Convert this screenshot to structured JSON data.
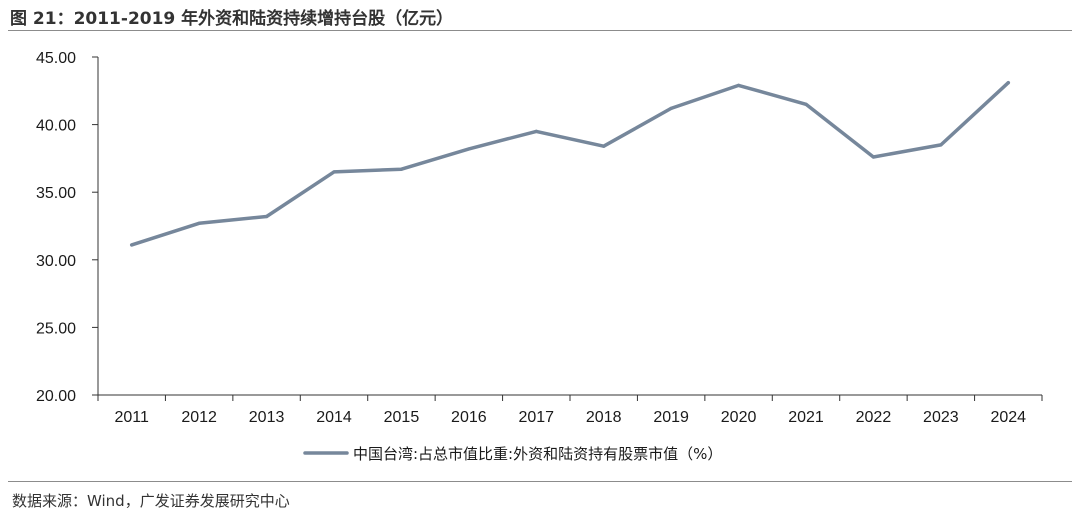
{
  "figure": {
    "title": "图 21：2011-2019 年外资和陆资持续增持台股（亿元）",
    "source": "数据来源：Wind，广发证券发展研究中心"
  },
  "colors": {
    "series": "#76879b",
    "axis": "#333333",
    "rule": "#8c8c8c"
  },
  "chart_data": {
    "type": "line",
    "title": "2011-2019 年外资和陆资持续增持台股（亿元）",
    "xlabel": "",
    "ylabel": "",
    "x": [
      "2011",
      "2012",
      "2013",
      "2014",
      "2015",
      "2016",
      "2017",
      "2018",
      "2019",
      "2020",
      "2021",
      "2022",
      "2023",
      "2024"
    ],
    "ylim": [
      20,
      45
    ],
    "yticks": [
      "20.00",
      "25.00",
      "30.00",
      "35.00",
      "40.00",
      "45.00"
    ],
    "grid": false,
    "legend_position": "bottom",
    "series": [
      {
        "name": "中国台湾:占总市值比重:外资和陆资持有股票市值（%）",
        "values": [
          31.1,
          32.7,
          33.2,
          36.5,
          36.7,
          38.2,
          39.5,
          38.4,
          41.2,
          42.9,
          41.5,
          37.6,
          38.5,
          43.1
        ]
      }
    ]
  }
}
